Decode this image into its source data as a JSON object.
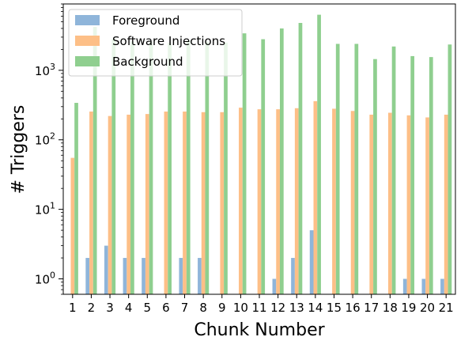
{
  "chart_data": {
    "type": "bar",
    "scale": "log",
    "xlabel": "Chunk Number",
    "ylabel": "# Triggers",
    "ylim": [
      0.6,
      9000
    ],
    "yticks": [
      {
        "value": 1,
        "base": "10",
        "exp": "0"
      },
      {
        "value": 10,
        "base": "10",
        "exp": "1"
      },
      {
        "value": 100,
        "base": "10",
        "exp": "2"
      },
      {
        "value": 1000,
        "base": "10",
        "exp": "3"
      }
    ],
    "categories": [
      "1",
      "2",
      "3",
      "4",
      "5",
      "6",
      "7",
      "8",
      "9",
      "10",
      "11",
      "12",
      "13",
      "14",
      "15",
      "16",
      "17",
      "18",
      "19",
      "20",
      "21"
    ],
    "legend_position": "top-left",
    "series": [
      {
        "name": "Foreground",
        "color": "#8fb5da",
        "values": [
          null,
          2,
          3,
          2,
          2,
          null,
          2,
          2,
          null,
          null,
          null,
          1,
          2,
          5,
          null,
          null,
          null,
          null,
          1,
          1,
          1
        ]
      },
      {
        "name": "Software Injections",
        "color": "#fdbf87",
        "values": [
          55,
          255,
          220,
          230,
          235,
          255,
          255,
          250,
          250,
          290,
          275,
          275,
          285,
          360,
          280,
          260,
          230,
          245,
          225,
          210,
          230
        ]
      },
      {
        "name": "Background",
        "color": "#8fcf8f",
        "values": [
          340,
          4200,
          2800,
          2600,
          2600,
          2500,
          2700,
          2600,
          2500,
          3400,
          2800,
          4000,
          4800,
          6300,
          2400,
          2400,
          1450,
          2200,
          1600,
          1550,
          2350
        ]
      }
    ]
  }
}
